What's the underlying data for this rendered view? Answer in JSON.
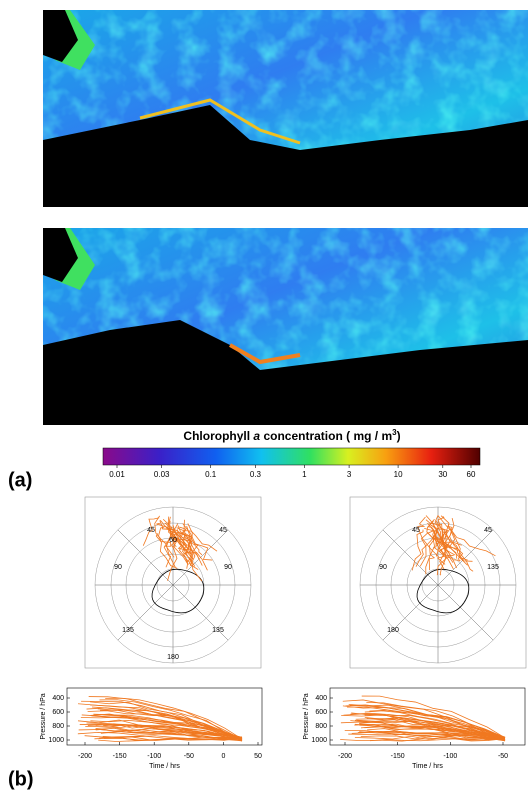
{
  "panel_a": {
    "label": "(a)",
    "colorbar": {
      "title_pre": "Chlorophyll",
      "title_italic": "a",
      "title_post": "concentration  ( mg / m",
      "title_sup": "3",
      "title_close": ")",
      "ticks": [
        0.01,
        0.03,
        0.1,
        0.3,
        1,
        3,
        10,
        30,
        60
      ]
    }
  },
  "panel_b": {
    "label": "(b)",
    "left": {
      "map_labels": [
        "45",
        "45",
        "90",
        "90",
        "135",
        "135",
        "180",
        "60"
      ],
      "y_label": "Pressure / hPa",
      "yticks": [
        400,
        600,
        800,
        1000
      ],
      "x_label": "Time / hrs",
      "xticks": [
        -200,
        -150,
        -100,
        -50,
        0,
        50
      ]
    },
    "right": {
      "map_labels": [
        "45",
        "45",
        "90",
        "135",
        "180"
      ],
      "y_label": "Pressure / hPa",
      "yticks": [
        400,
        600,
        800,
        1000
      ],
      "x_label": "Time / hrs",
      "xticks": [
        -200,
        -150,
        -100,
        -50
      ]
    }
  }
}
